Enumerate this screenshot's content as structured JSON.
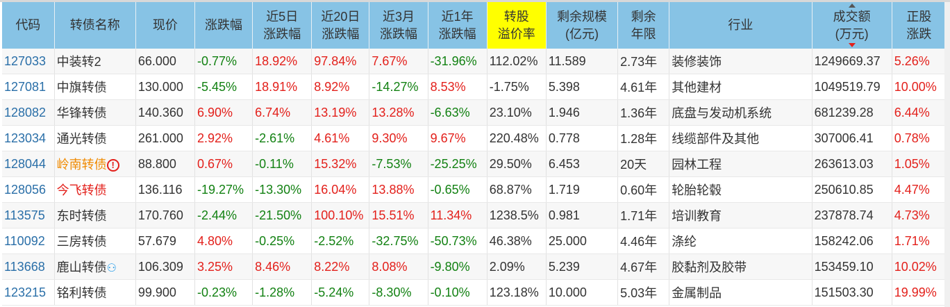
{
  "headers": [
    "代码",
    "转债名称",
    "现价",
    "涨跌幅",
    "近5日\n涨跌幅",
    "近20日\n涨跌幅",
    "近3月\n涨跌幅",
    "近1年\n涨跌幅",
    "转股\n溢价率",
    "剩余规模\n(亿元)",
    "剩余\n年限",
    "行业",
    "成交额\n(万元)",
    "正股\n涨跌"
  ],
  "rows": [
    [
      "127033",
      "中装转2",
      "66.000",
      "-0.77%",
      "18.92%",
      "97.84%",
      "7.67%",
      "-31.96%",
      "112.02%",
      "11.589",
      "2.73年",
      "装修装饰",
      "1249669.37",
      "5.26%"
    ],
    [
      "127081",
      "中旗转债",
      "130.000",
      "-5.45%",
      "18.91%",
      "8.92%",
      "-14.27%",
      "8.53%",
      "-1.75%",
      "5.398",
      "4.61年",
      "其他建材",
      "1049519.79",
      "10.00%"
    ],
    [
      "128082",
      "华锋转债",
      "140.360",
      "6.90%",
      "6.74%",
      "13.19%",
      "13.28%",
      "-6.63%",
      "23.10%",
      "1.946",
      "1.36年",
      "底盘与发动机系统",
      "681239.28",
      "6.44%"
    ],
    [
      "123034",
      "通光转债",
      "261.000",
      "2.92%",
      "-2.61%",
      "4.61%",
      "9.30%",
      "9.67%",
      "220.48%",
      "0.778",
      "1.28年",
      "线缆部件及其他",
      "307006.41",
      "0.78%"
    ],
    [
      "128044",
      "岭南转债",
      "88.800",
      "0.67%",
      "-0.11%",
      "15.32%",
      "-7.53%",
      "-25.25%",
      "29.50%",
      "6.453",
      "20天",
      "园林工程",
      "263613.03",
      "1.05%"
    ],
    [
      "128056",
      "今飞转债",
      "136.116",
      "-19.27%",
      "-13.30%",
      "16.04%",
      "13.88%",
      "-0.65%",
      "68.87%",
      "1.719",
      "0.60年",
      "轮胎轮毂",
      "250610.85",
      "4.47%"
    ],
    [
      "113575",
      "东时转债",
      "170.760",
      "-2.44%",
      "-21.50%",
      "100.10%",
      "15.51%",
      "11.34%",
      "1238.5%",
      "0.981",
      "1.71年",
      "培训教育",
      "237878.74",
      "4.73%"
    ],
    [
      "110092",
      "三房转债",
      "57.679",
      "4.80%",
      "-0.25%",
      "-2.52%",
      "-32.75%",
      "-50.73%",
      "46.38%",
      "25.000",
      "4.46年",
      "涤纶",
      "158242.06",
      "1.71%"
    ],
    [
      "113668",
      "鹿山转债",
      "106.309",
      "3.25%",
      "8.46%",
      "8.22%",
      "8.08%",
      "-9.80%",
      "2.09%",
      "5.239",
      "4.67年",
      "胶黏剂及胶带",
      "153459.10",
      "10.02%"
    ],
    [
      "123215",
      "铭利转债",
      "99.900",
      "-0.23%",
      "-1.28%",
      "-5.24%",
      "-8.30%",
      "-0.10%",
      "123.18%",
      "10.000",
      "5.03年",
      "金属制品",
      "151503.30",
      "19.99%"
    ]
  ],
  "name_styles": {
    "4": "orange",
    "5": "redname"
  },
  "name_icons": {
    "4": "warning-icon",
    "8": "person-icon"
  },
  "colors": {
    "header": "#87c3e5",
    "highlight": "#ffff00",
    "up": "#e3201b",
    "down": "#128112",
    "code": "#2a6fa8"
  }
}
